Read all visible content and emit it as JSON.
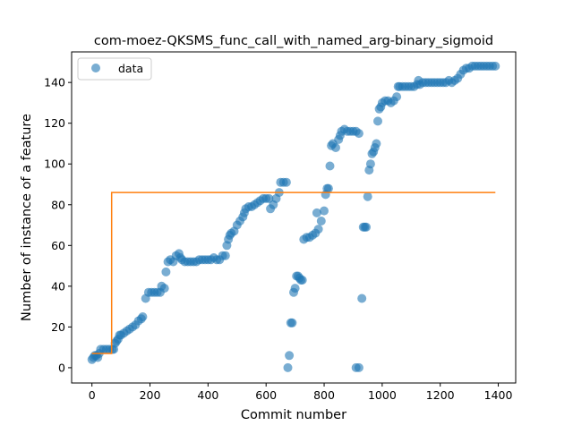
{
  "chart_data": {
    "type": "scatter",
    "title": "com-moez-QKSMS_func_call_with_named_arg-binary_sigmoid",
    "xlabel": "Commit number",
    "ylabel": "Number of instance of a feature",
    "xlim": [
      -70,
      1460
    ],
    "ylim": [
      -7.5,
      155
    ],
    "x_ticks": [
      0,
      200,
      400,
      600,
      800,
      1000,
      1200,
      1400
    ],
    "y_ticks": [
      0,
      20,
      40,
      60,
      80,
      100,
      120,
      140
    ],
    "grid": false,
    "legend": {
      "position": "top-left",
      "entries": [
        "data"
      ]
    },
    "colors": {
      "data": "#1f77b4",
      "fit": "#ff7f0e"
    },
    "series": [
      {
        "name": "data",
        "kind": "scatter",
        "points": [
          [
            0,
            4
          ],
          [
            5,
            5
          ],
          [
            10,
            6
          ],
          [
            15,
            6
          ],
          [
            20,
            5
          ],
          [
            25,
            7
          ],
          [
            30,
            9
          ],
          [
            40,
            9
          ],
          [
            50,
            9
          ],
          [
            60,
            9
          ],
          [
            70,
            9
          ],
          [
            75,
            9
          ],
          [
            80,
            12
          ],
          [
            85,
            13
          ],
          [
            90,
            14
          ],
          [
            95,
            16
          ],
          [
            100,
            16
          ],
          [
            110,
            17
          ],
          [
            120,
            18
          ],
          [
            130,
            19
          ],
          [
            140,
            20
          ],
          [
            150,
            21
          ],
          [
            160,
            23
          ],
          [
            170,
            24
          ],
          [
            175,
            25
          ],
          [
            185,
            34
          ],
          [
            195,
            37
          ],
          [
            205,
            37
          ],
          [
            215,
            37
          ],
          [
            225,
            37
          ],
          [
            235,
            37
          ],
          [
            240,
            40
          ],
          [
            250,
            39
          ],
          [
            255,
            47
          ],
          [
            262,
            52
          ],
          [
            270,
            53
          ],
          [
            280,
            52
          ],
          [
            290,
            55
          ],
          [
            300,
            56
          ],
          [
            305,
            54
          ],
          [
            310,
            53
          ],
          [
            320,
            52
          ],
          [
            330,
            52
          ],
          [
            340,
            52
          ],
          [
            350,
            52
          ],
          [
            360,
            52
          ],
          [
            370,
            53
          ],
          [
            380,
            53
          ],
          [
            390,
            53
          ],
          [
            400,
            53
          ],
          [
            410,
            53
          ],
          [
            420,
            54
          ],
          [
            430,
            53
          ],
          [
            440,
            53
          ],
          [
            450,
            55
          ],
          [
            460,
            55
          ],
          [
            465,
            60
          ],
          [
            470,
            63
          ],
          [
            475,
            65
          ],
          [
            480,
            66
          ],
          [
            490,
            67
          ],
          [
            500,
            70
          ],
          [
            510,
            72
          ],
          [
            520,
            74
          ],
          [
            525,
            76
          ],
          [
            530,
            78
          ],
          [
            540,
            79
          ],
          [
            550,
            79
          ],
          [
            560,
            80
          ],
          [
            570,
            81
          ],
          [
            580,
            82
          ],
          [
            590,
            83
          ],
          [
            600,
            83
          ],
          [
            610,
            83
          ],
          [
            615,
            78
          ],
          [
            625,
            80
          ],
          [
            635,
            83
          ],
          [
            645,
            86
          ],
          [
            650,
            91
          ],
          [
            660,
            91
          ],
          [
            670,
            91
          ],
          [
            675,
            0
          ],
          [
            680,
            6
          ],
          [
            685,
            22
          ],
          [
            690,
            22
          ],
          [
            695,
            37
          ],
          [
            700,
            39
          ],
          [
            705,
            45
          ],
          [
            710,
            45
          ],
          [
            715,
            44
          ],
          [
            720,
            43
          ],
          [
            725,
            43
          ],
          [
            730,
            63
          ],
          [
            740,
            64
          ],
          [
            750,
            64
          ],
          [
            760,
            65
          ],
          [
            770,
            66
          ],
          [
            775,
            76
          ],
          [
            780,
            68
          ],
          [
            790,
            72
          ],
          [
            800,
            77
          ],
          [
            805,
            85
          ],
          [
            810,
            88
          ],
          [
            815,
            88
          ],
          [
            820,
            99
          ],
          [
            825,
            109
          ],
          [
            830,
            110
          ],
          [
            840,
            108
          ],
          [
            850,
            112
          ],
          [
            855,
            114
          ],
          [
            860,
            116
          ],
          [
            870,
            117
          ],
          [
            880,
            116
          ],
          [
            890,
            116
          ],
          [
            900,
            116
          ],
          [
            910,
            116
          ],
          [
            920,
            115
          ],
          [
            910,
            0
          ],
          [
            920,
            0
          ],
          [
            930,
            34
          ],
          [
            935,
            69
          ],
          [
            940,
            69
          ],
          [
            945,
            69
          ],
          [
            950,
            84
          ],
          [
            955,
            97
          ],
          [
            960,
            100
          ],
          [
            965,
            105
          ],
          [
            970,
            106
          ],
          [
            975,
            108
          ],
          [
            980,
            110
          ],
          [
            985,
            121
          ],
          [
            990,
            127
          ],
          [
            995,
            128
          ],
          [
            1000,
            130
          ],
          [
            1010,
            131
          ],
          [
            1020,
            131
          ],
          [
            1030,
            130
          ],
          [
            1040,
            131
          ],
          [
            1050,
            133
          ],
          [
            1055,
            138
          ],
          [
            1060,
            138
          ],
          [
            1070,
            138
          ],
          [
            1080,
            138
          ],
          [
            1090,
            138
          ],
          [
            1100,
            138
          ],
          [
            1110,
            138
          ],
          [
            1120,
            139
          ],
          [
            1125,
            141
          ],
          [
            1130,
            139
          ],
          [
            1140,
            140
          ],
          [
            1150,
            140
          ],
          [
            1160,
            140
          ],
          [
            1170,
            140
          ],
          [
            1180,
            140
          ],
          [
            1190,
            140
          ],
          [
            1200,
            140
          ],
          [
            1210,
            140
          ],
          [
            1220,
            140
          ],
          [
            1230,
            141
          ],
          [
            1240,
            140
          ],
          [
            1250,
            141
          ],
          [
            1260,
            142
          ],
          [
            1270,
            144
          ],
          [
            1280,
            146
          ],
          [
            1290,
            147
          ],
          [
            1300,
            147
          ],
          [
            1310,
            148
          ],
          [
            1320,
            148
          ],
          [
            1330,
            148
          ],
          [
            1340,
            148
          ],
          [
            1350,
            148
          ],
          [
            1360,
            148
          ],
          [
            1370,
            148
          ],
          [
            1380,
            148
          ],
          [
            1390,
            148
          ]
        ]
      },
      {
        "name": "",
        "kind": "step",
        "points": [
          [
            0,
            7
          ],
          [
            68,
            7
          ],
          [
            68,
            86
          ],
          [
            1390,
            86
          ]
        ]
      }
    ]
  }
}
